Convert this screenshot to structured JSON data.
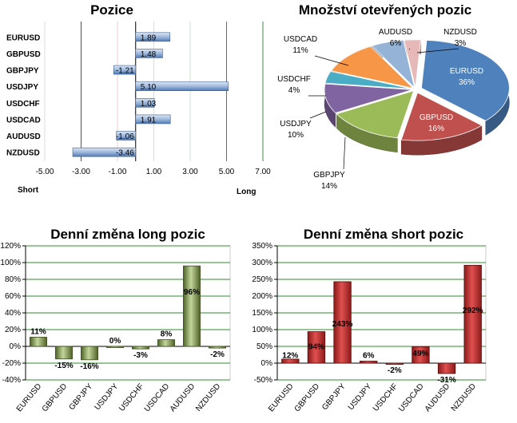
{
  "chart_data": [
    {
      "type": "bar",
      "orientation": "horizontal",
      "title": "Pozice",
      "categories": [
        "EURUSD",
        "GBPUSD",
        "GBPJPY",
        "USDJPY",
        "USDCHF",
        "USDCAD",
        "AUDUSD",
        "NZDUSD"
      ],
      "values": [
        1.89,
        1.48,
        -1.21,
        5.1,
        1.03,
        1.91,
        -1.06,
        -3.46
      ],
      "value_labels": [
        "1.89",
        "1.48",
        "-1.21",
        "5.10",
        "1.03",
        "1.91",
        "-1.06",
        "-3.46"
      ],
      "xlim": [
        -5,
        7
      ],
      "xticks": [
        -5,
        -3,
        -1,
        1,
        3,
        5,
        7
      ],
      "xtick_labels": [
        "-5.00",
        "-3.00",
        "-1.00",
        "1.00",
        "3.00",
        "5.00",
        "7.00"
      ],
      "left_label": "Short",
      "right_label": "Long",
      "colors": {
        "bar": "#4f7ab5",
        "bar_light": "#dbe6f4",
        "short_line": "#a03030",
        "long_line": "#3c8c3c"
      }
    },
    {
      "type": "pie",
      "title": "Množství otevřených pozic",
      "slices": [
        {
          "name": "EURUSD",
          "value": 36,
          "label": "36%",
          "color": "#4f81bd"
        },
        {
          "name": "GBPUSD",
          "value": 16,
          "label": "16%",
          "color": "#c0504d"
        },
        {
          "name": "GBPJPY",
          "value": 14,
          "label": "14%",
          "color": "#9bbb59"
        },
        {
          "name": "USDJPY",
          "value": 10,
          "label": "10%",
          "color": "#8064a2"
        },
        {
          "name": "USDCHF",
          "value": 4,
          "label": "4%",
          "color": "#4bacc6"
        },
        {
          "name": "USDCAD",
          "value": 11,
          "label": "11%",
          "color": "#f79646"
        },
        {
          "name": "AUDUSD",
          "value": 6,
          "label": "6%",
          "color": "#95b3d7"
        },
        {
          "name": "NZDUSD",
          "value": 3,
          "label": "3%",
          "color": "#e6b9b8"
        }
      ]
    },
    {
      "type": "bar",
      "title": "Denní změna long pozic",
      "categories": [
        "EURUSD",
        "GBPUSD",
        "GBPJPY",
        "USDJPY",
        "USDCHF",
        "USDCAD",
        "AUDUSD",
        "NZDUSD"
      ],
      "values": [
        11,
        -15,
        -16,
        0,
        -3,
        8,
        96,
        -2
      ],
      "value_labels": [
        "11%",
        "-15%",
        "-16%",
        "0%",
        "-3%",
        "8%",
        "96%",
        "-2%"
      ],
      "ylim": [
        -40,
        120
      ],
      "yticks": [
        -40,
        -20,
        0,
        20,
        40,
        60,
        80,
        100,
        120
      ],
      "ytick_labels": [
        "-40%",
        "-20%",
        "0%",
        "20%",
        "40%",
        "60%",
        "80%",
        "100%",
        "120%"
      ],
      "grid": true,
      "color": "#77933c"
    },
    {
      "type": "bar",
      "title": "Denní změna short pozic",
      "categories": [
        "EURUSD",
        "GBPUSD",
        "GBPJPY",
        "USDJPY",
        "USDCHF",
        "USDCAD",
        "AUDUSD",
        "NZDUSD"
      ],
      "values": [
        12,
        94,
        243,
        6,
        -2,
        49,
        -31,
        292
      ],
      "value_labels": [
        "12%",
        "94%",
        "243%",
        "6%",
        "-2%",
        "49%",
        "-31%",
        "292%"
      ],
      "ylim": [
        -50,
        350
      ],
      "yticks": [
        -50,
        0,
        50,
        100,
        150,
        200,
        250,
        300,
        350
      ],
      "ytick_labels": [
        "-50%",
        "0%",
        "50%",
        "100%",
        "150%",
        "200%",
        "250%",
        "300%",
        "350%"
      ],
      "grid": true,
      "color": "#c0392b"
    }
  ]
}
